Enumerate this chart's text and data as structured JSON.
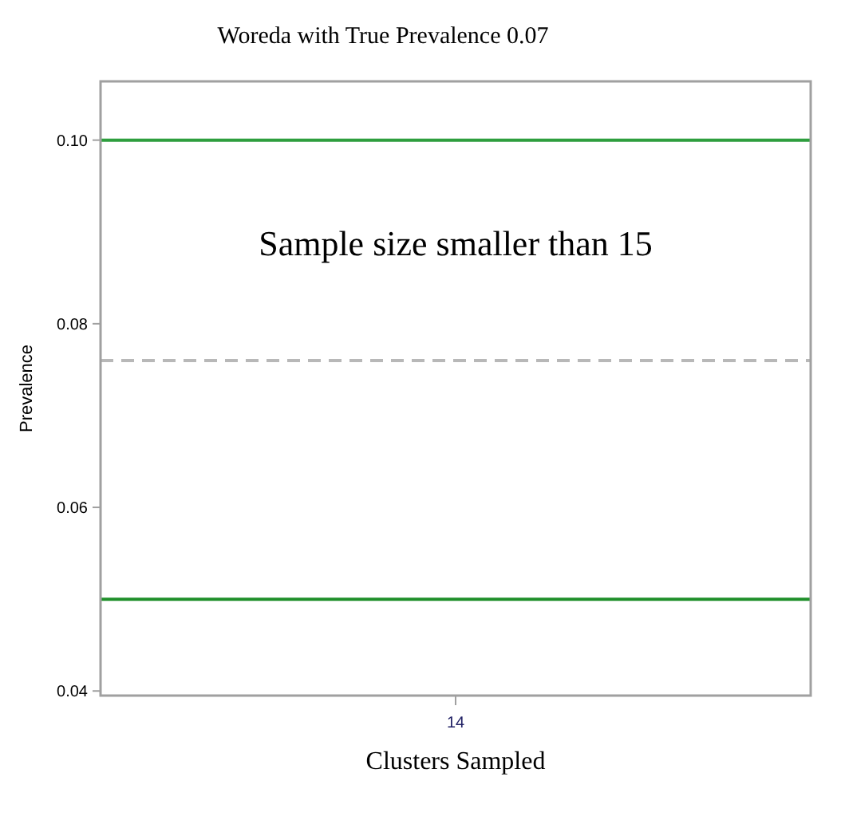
{
  "chart_data": {
    "type": "line",
    "title": "Woreda with True Prevalence 0.07",
    "xlabel": "Clusters Sampled",
    "ylabel": "Prevalence",
    "categories": [
      "14"
    ],
    "values": [
      null
    ],
    "ylim": [
      0.0395,
      0.1064
    ],
    "yticks": [
      {
        "value": 0.04,
        "label": "0.04"
      },
      {
        "value": 0.06,
        "label": "0.06"
      },
      {
        "value": 0.08,
        "label": "0.08"
      },
      {
        "value": 0.1,
        "label": "0.10"
      }
    ],
    "ref_lines": [
      {
        "axis": "y",
        "value": 0.1,
        "color": "#2e9e3e",
        "line_style": "solid"
      },
      {
        "axis": "y",
        "value": 0.076,
        "color": "#b8b8b8",
        "line_style": "dashed"
      },
      {
        "axis": "y",
        "value": 0.05,
        "color": "#1f8f2a",
        "line_style": "solid"
      }
    ],
    "annotations": [
      "Sample size smaller than 15"
    ],
    "grid": false
  }
}
